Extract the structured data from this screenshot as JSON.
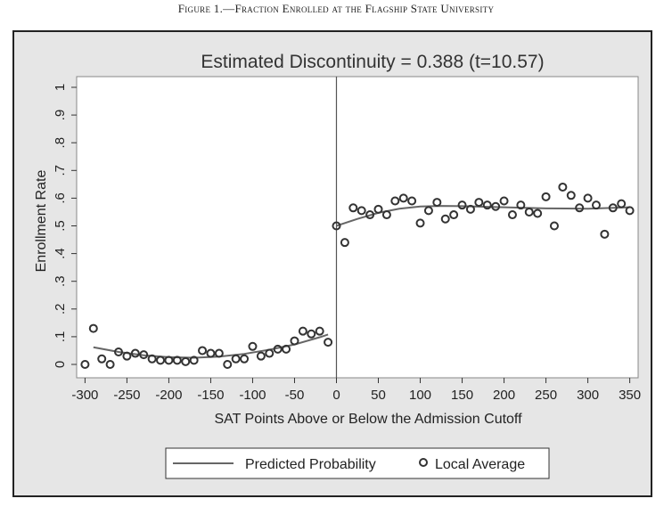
{
  "caption": "Figure 1.—Fraction Enrolled at the Flagship State University",
  "chart_data": {
    "type": "scatter",
    "title": "Estimated Discontinuity = 0.388 (t=10.57)",
    "xlabel": "SAT Points Above or Below the Admission Cutoff",
    "ylabel": "Enrollment Rate",
    "xlim": [
      -300,
      350
    ],
    "ylim": [
      0,
      1
    ],
    "x_ticks": [
      "-300",
      "-250",
      "-200",
      "-150",
      "-100",
      "-50",
      "0",
      "50",
      "100",
      "150",
      "200",
      "250",
      "300",
      "350"
    ],
    "y_ticks": [
      "0",
      ".1",
      ".2",
      ".3",
      ".4",
      ".5",
      ".6",
      ".7",
      ".8",
      ".9",
      "1"
    ],
    "cutoff": 0,
    "grid": false,
    "legend_position": "bottom",
    "colors": {
      "fitted_line": "#666666",
      "markers": "#333333",
      "panel": "#e6e6e6",
      "plot_bg": "#ffffff"
    },
    "series": [
      {
        "name": "Predicted Probability",
        "kind": "line",
        "segments": [
          {
            "x": [
              -290,
              -260,
              -230,
              -200,
              -170,
              -140,
              -110,
              -80,
              -50,
              -20,
              -10
            ],
            "y": [
              0.062,
              0.045,
              0.033,
              0.026,
              0.024,
              0.028,
              0.038,
              0.053,
              0.072,
              0.098,
              0.108
            ]
          },
          {
            "x": [
              0,
              25,
              50,
              75,
              100,
              125,
              150,
              200,
              250,
              300,
              350
            ],
            "y": [
              0.5,
              0.525,
              0.547,
              0.562,
              0.57,
              0.572,
              0.571,
              0.567,
              0.563,
              0.562,
              0.567
            ]
          }
        ]
      },
      {
        "name": "Local Average",
        "kind": "scatter",
        "x": [
          -300,
          -290,
          -280,
          -270,
          -260,
          -250,
          -240,
          -230,
          -220,
          -210,
          -200,
          -190,
          -180,
          -170,
          -160,
          -150,
          -140,
          -130,
          -120,
          -110,
          -100,
          -90,
          -80,
          -70,
          -60,
          -50,
          -40,
          -30,
          -20,
          -10,
          0,
          10,
          20,
          30,
          40,
          50,
          60,
          70,
          80,
          90,
          100,
          110,
          120,
          130,
          140,
          150,
          160,
          170,
          180,
          190,
          200,
          210,
          220,
          230,
          240,
          250,
          260,
          270,
          280,
          290,
          300,
          310,
          320,
          330,
          340,
          350
        ],
        "y": [
          0.0,
          0.13,
          0.02,
          0.0,
          0.045,
          0.03,
          0.04,
          0.035,
          0.02,
          0.015,
          0.015,
          0.015,
          0.01,
          0.015,
          0.05,
          0.04,
          0.04,
          0.0,
          0.02,
          0.02,
          0.065,
          0.03,
          0.04,
          0.055,
          0.055,
          0.085,
          0.12,
          0.11,
          0.12,
          0.08,
          0.5,
          0.44,
          0.565,
          0.555,
          0.54,
          0.56,
          0.54,
          0.59,
          0.6,
          0.59,
          0.51,
          0.555,
          0.585,
          0.525,
          0.54,
          0.575,
          0.56,
          0.585,
          0.575,
          0.57,
          0.59,
          0.54,
          0.575,
          0.55,
          0.545,
          0.605,
          0.5,
          0.64,
          0.61,
          0.565,
          0.6,
          0.575,
          0.47,
          0.565,
          0.58,
          0.555
        ]
      }
    ]
  }
}
